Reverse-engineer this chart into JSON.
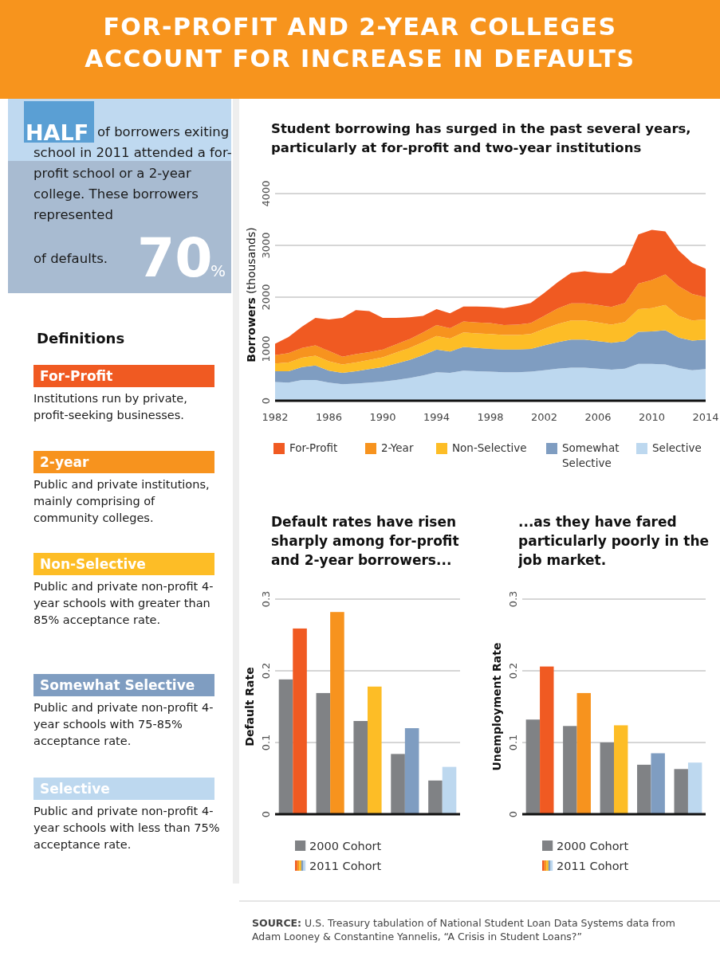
{
  "chart_data": [
    {
      "type": "other",
      "title": "FOR-PROFIT AND 2-YEAR COLLEGES ACCOUNT FOR INCREASE IN DEFAULTS",
      "annotations": [
        "HALF",
        "of borrowers exiting school in 2011 attended a for-profit school or a 2-year college. These borrowers represented",
        "70",
        "%",
        "of defaults.",
        "Definitions",
        "For-Profit",
        "Institutions run by private, profit-seeking businesses.",
        "2-year",
        "Public and private institutions, mainly comprising of community colleges.",
        "Non-Selective",
        "Public and private non-profit 4-year schools with greater than 85% acceptance rate.",
        "Somewhat Selective",
        "Public and private non-profit 4-year schools with 75-85% acceptance rate.",
        "Selective",
        "Public and private non-profit 4-year schools with less than 75% acceptance rate.",
        "SOURCE: U.S. Treasury tabulation of National Student Loan Data Systems data from Adam Looney & Constantine Yannelis, “A Crisis in Student Loans?”"
      ]
    },
    {
      "type": "area",
      "stacked": true,
      "title": "Student borrowing has surged in the past several years, particularly at for-profit and two-year institutions",
      "ylabel": "Borrowers (thousands)",
      "x": [
        1982,
        1983,
        1984,
        1985,
        1986,
        1987,
        1988,
        1989,
        1990,
        1991,
        1992,
        1993,
        1994,
        1995,
        1996,
        1997,
        1998,
        1999,
        2000,
        2001,
        2002,
        2003,
        2004,
        2005,
        2006,
        2007,
        2008,
        2009,
        2010,
        2011,
        2012,
        2013,
        2014
      ],
      "xlim": [
        1982,
        2014
      ],
      "xticks": [
        1982,
        1986,
        1990,
        1994,
        1998,
        2002,
        2006,
        2010,
        2014
      ],
      "ylim": [
        0,
        4000
      ],
      "yticks": [
        0,
        1000,
        2000,
        3000,
        4000
      ],
      "grid": "y",
      "legend": "bottom",
      "series": [
        {
          "name": "Selective",
          "color": "#bdd8ef",
          "values": [
            360,
            350,
            400,
            400,
            350,
            320,
            330,
            350,
            370,
            400,
            440,
            490,
            550,
            540,
            580,
            570,
            560,
            550,
            550,
            560,
            590,
            620,
            640,
            640,
            620,
            600,
            620,
            710,
            710,
            700,
            630,
            590,
            610
          ]
        },
        {
          "name": "Somewhat Selective",
          "color": "#7f9dc1",
          "values": [
            210,
            220,
            250,
            280,
            230,
            220,
            240,
            260,
            280,
            320,
            350,
            390,
            440,
            410,
            460,
            450,
            440,
            440,
            440,
            440,
            480,
            510,
            540,
            540,
            530,
            520,
            530,
            620,
            630,
            660,
            590,
            570,
            570
          ]
        },
        {
          "name": "Non-Selective",
          "color": "#fdbd26",
          "values": [
            150,
            170,
            180,
            190,
            180,
            160,
            170,
            180,
            190,
            210,
            230,
            250,
            260,
            250,
            280,
            280,
            290,
            280,
            280,
            290,
            320,
            350,
            370,
            370,
            360,
            350,
            370,
            440,
            450,
            490,
            420,
            390,
            390
          ]
        },
        {
          "name": "2-Year",
          "color": "#f7931e",
          "values": [
            160,
            180,
            190,
            200,
            200,
            150,
            160,
            150,
            150,
            160,
            170,
            190,
            210,
            200,
            210,
            210,
            210,
            190,
            200,
            210,
            250,
            300,
            330,
            330,
            340,
            340,
            370,
            490,
            540,
            590,
            570,
            510,
            430
          ]
        },
        {
          "name": "For-Profit",
          "color": "#f05a22",
          "values": [
            220,
            310,
            410,
            530,
            610,
            750,
            850,
            790,
            610,
            510,
            420,
            320,
            310,
            290,
            290,
            310,
            310,
            330,
            360,
            390,
            440,
            510,
            590,
            620,
            620,
            650,
            740,
            950,
            970,
            830,
            690,
            600,
            550
          ]
        }
      ]
    },
    {
      "type": "bar",
      "title": "Default rates have risen sharply among for-profit and 2-year borrowers...",
      "ylabel": "Default Rate",
      "categories": [
        null,
        null,
        null,
        null,
        null
      ],
      "ylim": [
        0,
        0.3
      ],
      "yticks": [
        0,
        0.1,
        0.2,
        0.3
      ],
      "grid": "y",
      "legend": "bottom",
      "series": [
        {
          "name": "2000 Cohort",
          "color": "#808285",
          "values": [
            0.188,
            0.169,
            0.13,
            0.084,
            0.047
          ]
        },
        {
          "name": "2011 Cohort",
          "colors": [
            "#f05a22",
            "#f7931e",
            "#fdbd26",
            "#7f9dc1",
            "#bdd8ef"
          ],
          "values": [
            0.259,
            0.282,
            0.178,
            0.12,
            0.066
          ]
        }
      ]
    },
    {
      "type": "bar",
      "title": "...as they have fared particularly poorly in the job market.",
      "ylabel": "Unemployment Rate",
      "categories": [
        null,
        null,
        null,
        null,
        null
      ],
      "ylim": [
        0,
        0.3
      ],
      "yticks": [
        0,
        0.1,
        0.2,
        0.3
      ],
      "grid": "y",
      "legend": "bottom",
      "series": [
        {
          "name": "2000 Cohort",
          "color": "#808285",
          "values": [
            0.132,
            0.123,
            0.1,
            0.069,
            0.063
          ]
        },
        {
          "name": "2011 Cohort",
          "colors": [
            "#f05a22",
            "#f7931e",
            "#fdbd26",
            "#7f9dc1",
            "#bdd8ef"
          ],
          "values": [
            0.206,
            0.169,
            0.124,
            0.085,
            0.072
          ]
        }
      ]
    }
  ]
}
